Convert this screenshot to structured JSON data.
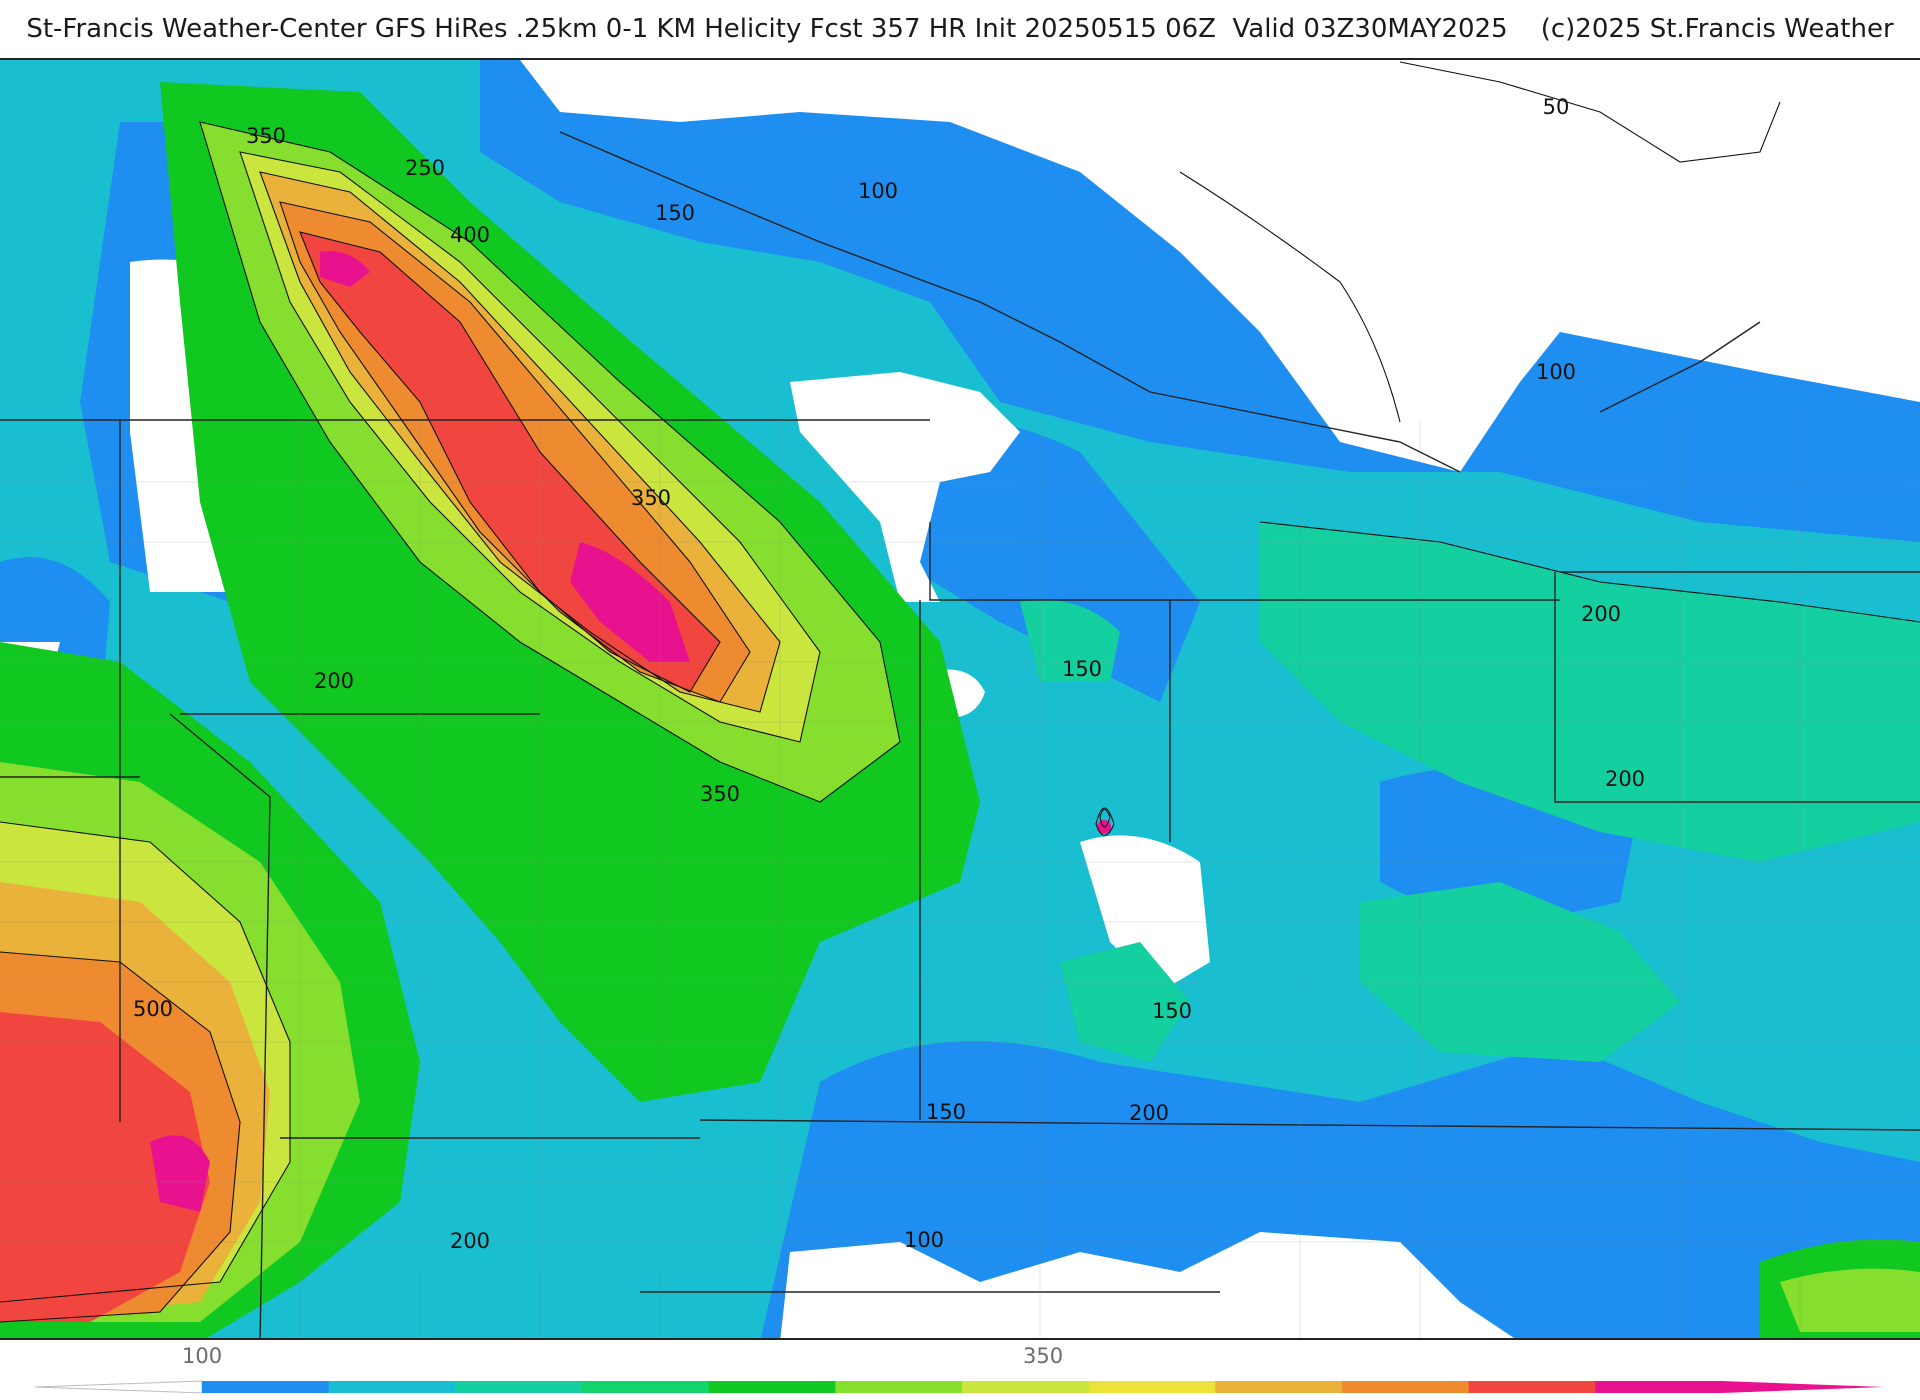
{
  "header": {
    "title": "St-Francis Weather-Center GFS HiRes .25km 0-1 KM Helicity Fcst 357 HR Init 20250515 06Z  Valid 03Z30MAY2025    (c)2025 St.Francis Weather"
  },
  "map": {
    "contour_labels": [
      {
        "name": "label-350-nw",
        "text": "350"
      },
      {
        "name": "label-250-nw",
        "text": "250"
      },
      {
        "name": "label-400-nw",
        "text": "400"
      },
      {
        "name": "label-150-north",
        "text": "150"
      },
      {
        "name": "label-100-north",
        "text": "100"
      },
      {
        "name": "label-50-ne",
        "text": "50"
      },
      {
        "name": "label-100-ne",
        "text": "100"
      },
      {
        "name": "label-350-center",
        "text": "350"
      },
      {
        "name": "label-200-west",
        "text": "200"
      },
      {
        "name": "label-150-center",
        "text": "150"
      },
      {
        "name": "label-200-east",
        "text": "200"
      },
      {
        "name": "label-200-east-lower",
        "text": "200"
      },
      {
        "name": "label-350-south",
        "text": "350"
      },
      {
        "name": "label-500-sw",
        "text": "500"
      },
      {
        "name": "label-150-mid",
        "text": "150"
      },
      {
        "name": "label-150-south",
        "text": "150"
      },
      {
        "name": "label-200-south",
        "text": "200"
      },
      {
        "name": "label-200-sw",
        "text": "200"
      },
      {
        "name": "label-100-south",
        "text": "100"
      }
    ]
  },
  "colorbar": {
    "tick_labels": [
      "100",
      "350"
    ],
    "colors": [
      "#1e8ef0",
      "#19bfd0",
      "#14cfa0",
      "#12d46a",
      "#10c820",
      "#86df2f",
      "#c9e53e",
      "#ece23a",
      "#eab23a",
      "#ee8a30",
      "#f1463f",
      "#e8128f"
    ]
  }
}
